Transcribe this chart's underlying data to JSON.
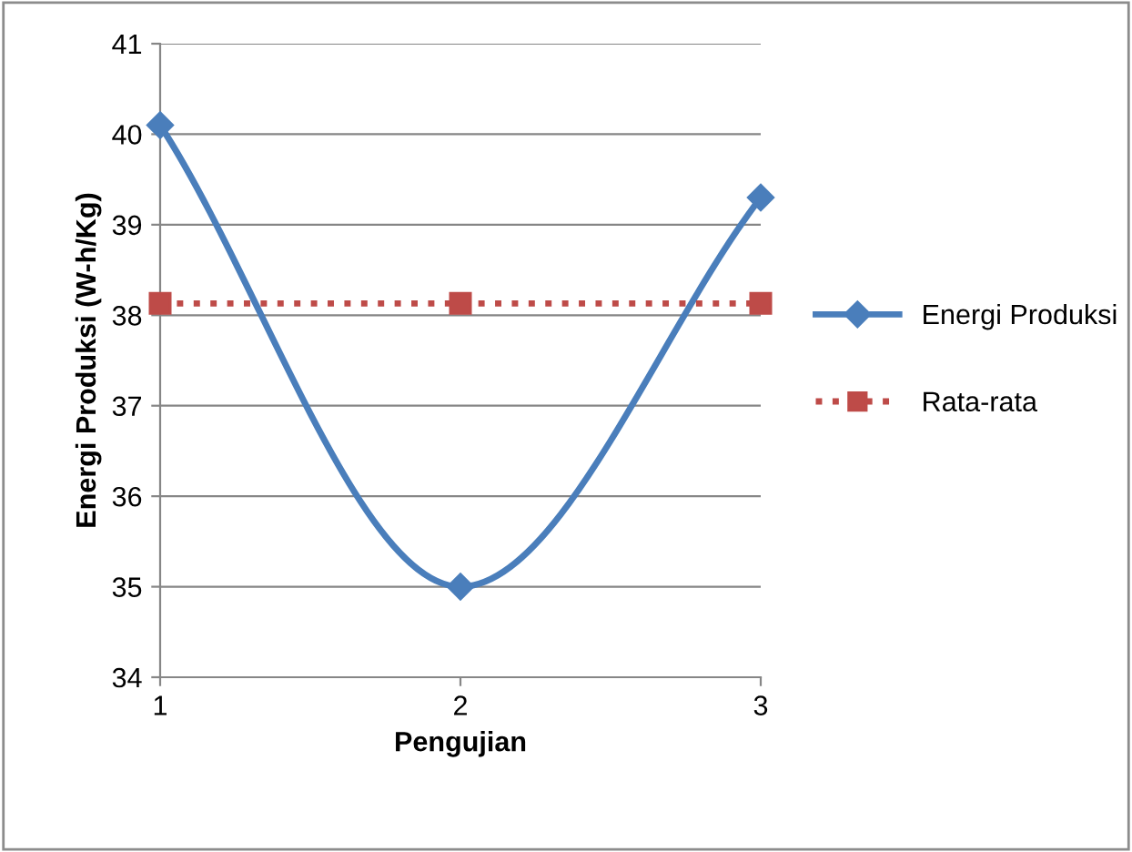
{
  "chart_data": {
    "type": "line",
    "xlabel": "Pengujian",
    "ylabel": "Energi Produksi (W-h/Kg)",
    "categories": [
      "1",
      "2",
      "3"
    ],
    "series": [
      {
        "name": "Energi Produksi",
        "color": "#4a7ebb",
        "values": [
          40.1,
          35.0,
          39.3
        ],
        "marker": "diamond",
        "line_style": "solid"
      },
      {
        "name": "Rata-rata",
        "color": "#be4b48",
        "values": [
          38.13,
          38.13,
          38.13
        ],
        "marker": "square",
        "line_style": "dotted"
      }
    ],
    "ylim": [
      34,
      41
    ],
    "yticks": [
      34,
      35,
      36,
      37,
      38,
      39,
      40,
      41
    ],
    "grid": "y",
    "legend": "right"
  }
}
